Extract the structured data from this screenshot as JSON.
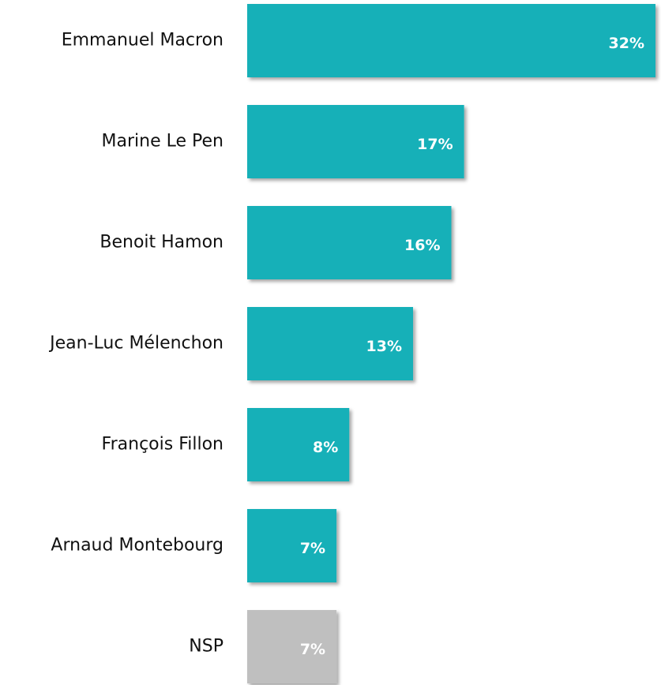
{
  "chart_data": {
    "type": "bar",
    "orientation": "horizontal",
    "categories": [
      "Emmanuel Macron",
      "Marine Le Pen",
      "Benoit Hamon",
      "Jean-Luc Mélenchon",
      "François Fillon",
      "Arnaud Montebourg",
      "NSP"
    ],
    "values": [
      32,
      17,
      16,
      13,
      8,
      7,
      7
    ],
    "value_labels": [
      "32%",
      "17%",
      "16%",
      "13%",
      "8%",
      "7%",
      "7%"
    ],
    "colors": [
      "#14b0b8",
      "#14b0b8",
      "#14b0b8",
      "#14b0b8",
      "#14b0b8",
      "#14b0b8",
      "#bfbfbf"
    ]
  }
}
